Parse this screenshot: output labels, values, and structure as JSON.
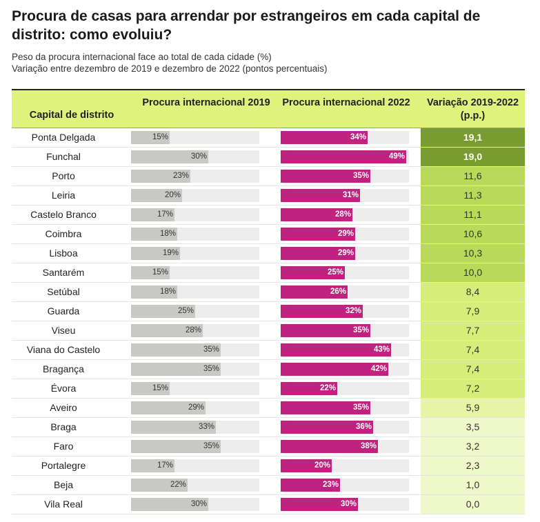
{
  "title": "Procura de casas para arrendar por estrangeiros em cada capital de distrito: como evoluiu?",
  "subtitle_1": "Peso da procura internacional face ao total de cada cidade (%)",
  "subtitle_2": "Variação entre dezembro de 2019 e dezembro de 2022 (pontos percentuais)",
  "headers": {
    "city": "Capital de distrito",
    "y2019": "Procura internacional 2019",
    "y2022": "Procura internacional 2022",
    "variation": "Variação 2019-2022 (p.p.)"
  },
  "colors": {
    "bar_2019": "#c8c8c4",
    "bar_2022": "#c0237f",
    "bar_track": "#ececec",
    "header_bg": "#dff37c",
    "var_strong": "#789c30",
    "var_high": "#b8d95a",
    "var_mid": "#d6ed7a",
    "var_low": "#e6f4a4",
    "var_lowest": "#eef8c8"
  },
  "chart_data": {
    "type": "table",
    "title": "Procura de casas para arrendar por estrangeiros em cada capital de distrito: como evoluiu?",
    "columns": [
      "Capital de distrito",
      "Procura internacional 2019",
      "Procura internacional 2022",
      "Variação 2019-2022 (p.p.)"
    ],
    "bar_scale_max": 50,
    "rows": [
      {
        "city": "Ponta Delgada",
        "v2019": 15,
        "l2019": "15%",
        "v2022": 34,
        "l2022": "34%",
        "var": "19,1"
      },
      {
        "city": "Funchal",
        "v2019": 30,
        "l2019": "30%",
        "v2022": 49,
        "l2022": "49%",
        "var": "19,0"
      },
      {
        "city": "Porto",
        "v2019": 23,
        "l2019": "23%",
        "v2022": 35,
        "l2022": "35%",
        "var": "11,6"
      },
      {
        "city": "Leiria",
        "v2019": 20,
        "l2019": "20%",
        "v2022": 31,
        "l2022": "31%",
        "var": "11,3"
      },
      {
        "city": "Castelo Branco",
        "v2019": 17,
        "l2019": "17%",
        "v2022": 28,
        "l2022": "28%",
        "var": "11,1"
      },
      {
        "city": "Coimbra",
        "v2019": 18,
        "l2019": "18%",
        "v2022": 29,
        "l2022": "29%",
        "var": "10,6"
      },
      {
        "city": "Lisboa",
        "v2019": 19,
        "l2019": "19%",
        "v2022": 29,
        "l2022": "29%",
        "var": "10,3"
      },
      {
        "city": "Santarém",
        "v2019": 15,
        "l2019": "15%",
        "v2022": 25,
        "l2022": "25%",
        "var": "10,0"
      },
      {
        "city": "Setúbal",
        "v2019": 18,
        "l2019": "18%",
        "v2022": 26,
        "l2022": "26%",
        "var": "8,4"
      },
      {
        "city": "Guarda",
        "v2019": 25,
        "l2019": "25%",
        "v2022": 32,
        "l2022": "32%",
        "var": "7,9"
      },
      {
        "city": "Viseu",
        "v2019": 28,
        "l2019": "28%",
        "v2022": 35,
        "l2022": "35%",
        "var": "7,7"
      },
      {
        "city": "Viana do Castelo",
        "v2019": 35,
        "l2019": "35%",
        "v2022": 43,
        "l2022": "43%",
        "var": "7,4"
      },
      {
        "city": "Bragança",
        "v2019": 35,
        "l2019": "35%",
        "v2022": 42,
        "l2022": "42%",
        "var": "7,4"
      },
      {
        "city": "Évora",
        "v2019": 15,
        "l2019": "15%",
        "v2022": 22,
        "l2022": "22%",
        "var": "7,2"
      },
      {
        "city": "Aveiro",
        "v2019": 29,
        "l2019": "29%",
        "v2022": 35,
        "l2022": "35%",
        "var": "5,9"
      },
      {
        "city": "Braga",
        "v2019": 33,
        "l2019": "33%",
        "v2022": 36,
        "l2022": "36%",
        "var": "3,5"
      },
      {
        "city": "Faro",
        "v2019": 35,
        "l2019": "35%",
        "v2022": 38,
        "l2022": "38%",
        "var": "3,2"
      },
      {
        "city": "Portalegre",
        "v2019": 17,
        "l2019": "17%",
        "v2022": 20,
        "l2022": "20%",
        "var": "2,3"
      },
      {
        "city": "Beja",
        "v2019": 22,
        "l2019": "22%",
        "v2022": 23,
        "l2022": "23%",
        "var": "1,0"
      },
      {
        "city": "Vila Real",
        "v2019": 30,
        "l2019": "30%",
        "v2022": 30,
        "l2022": "30%",
        "var": "0,0"
      }
    ]
  }
}
